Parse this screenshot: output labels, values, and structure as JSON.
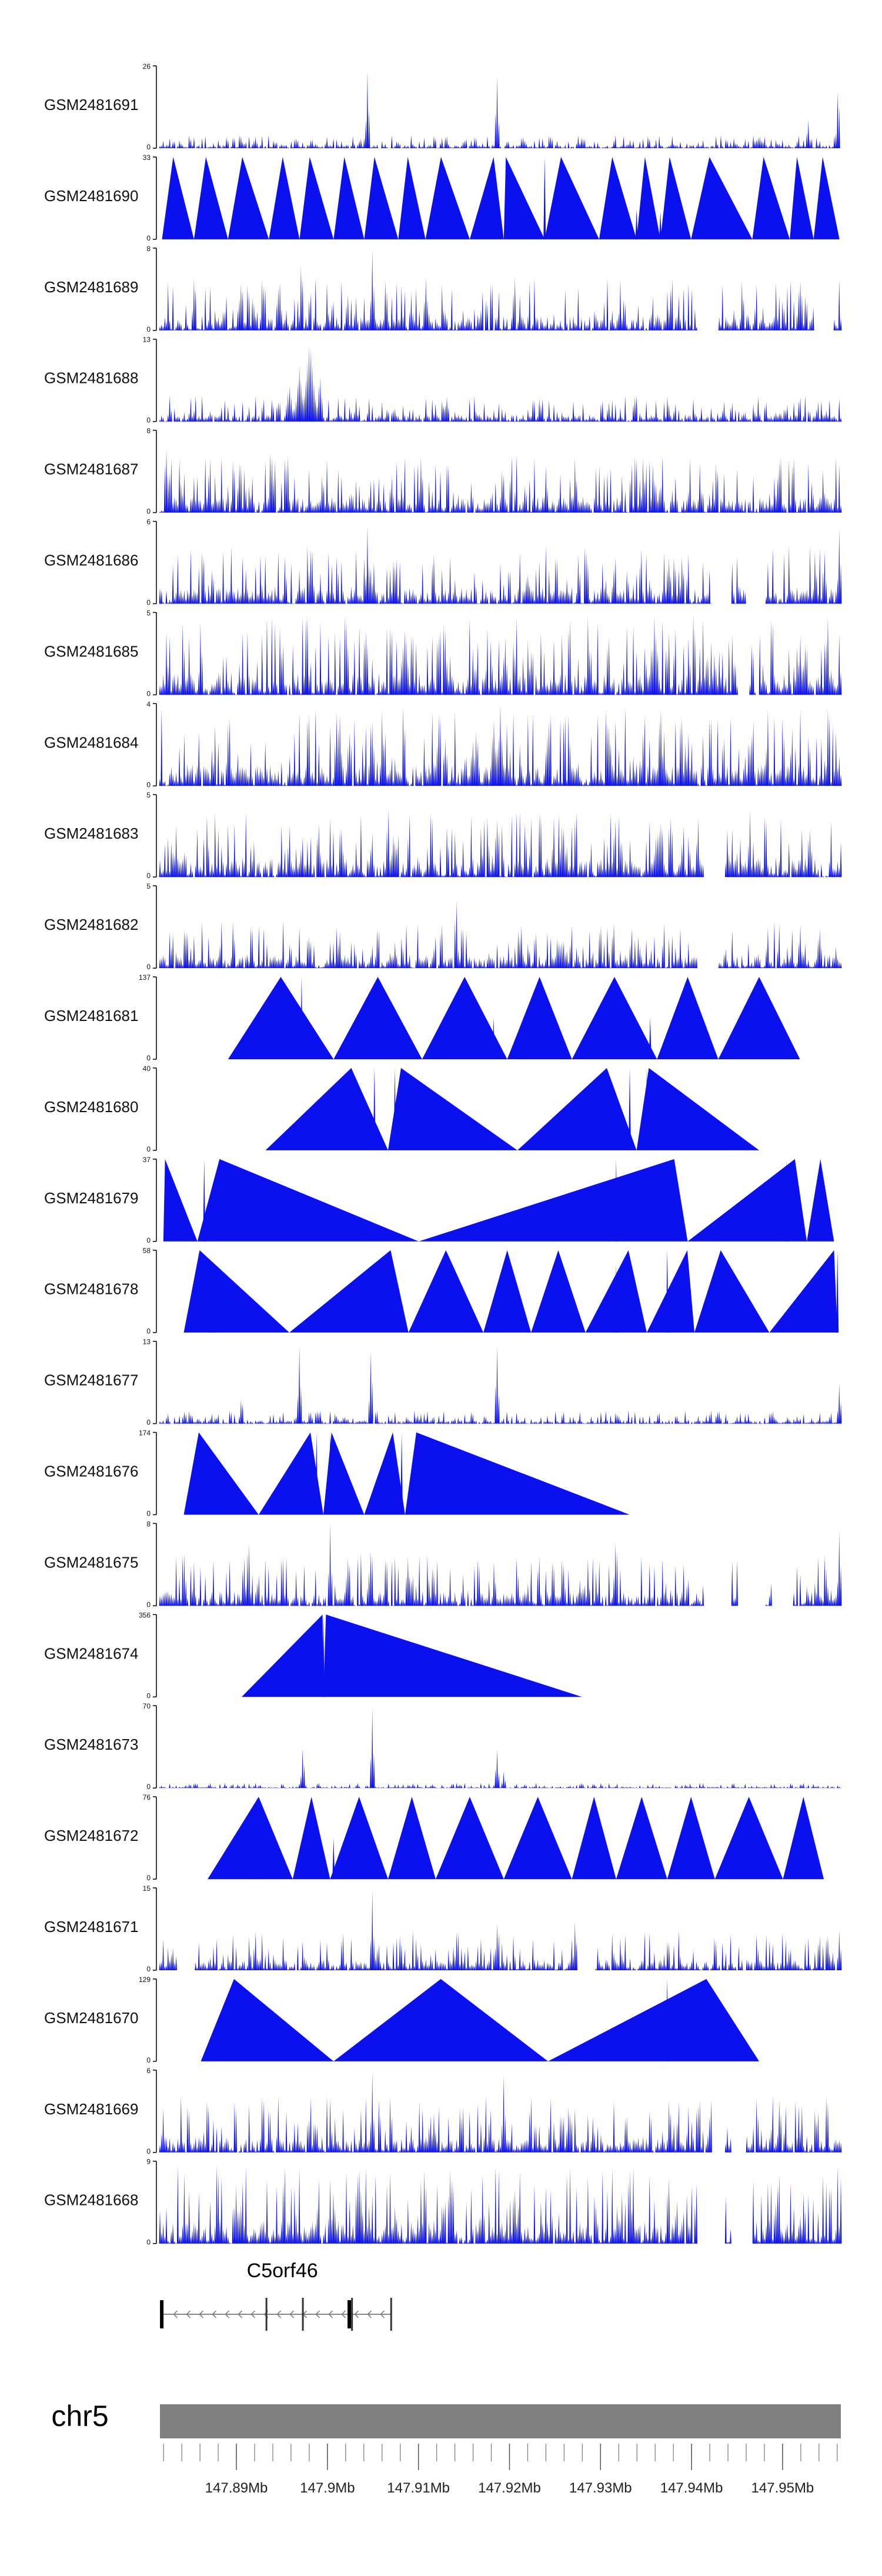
{
  "chart_data": {
    "type": "area",
    "title": "",
    "xlabel": "",
    "ylabel": "",
    "chromosome": "chr5",
    "x_range_mb": [
      147.8816,
      147.9564
    ],
    "x_ticks_mb": [
      147.89,
      147.9,
      147.91,
      147.92,
      147.93,
      147.94,
      147.95
    ],
    "x_tick_labels": [
      "147.89Mb",
      "147.9Mb",
      "147.91Mb",
      "147.92Mb",
      "147.93Mb",
      "147.94Mb",
      "147.95Mb"
    ],
    "fill_color": "#0b11ee",
    "tracks": [
      {
        "sample": "GSM2481691",
        "ymax": 26,
        "ymax_label": "26",
        "ymin_label": "0",
        "style": "dense",
        "baseline": 0.05,
        "bumps": [
          [
            0.305,
            26,
            0.004
          ],
          [
            0.495,
            24,
            0.004
          ],
          [
            0.952,
            10,
            0.004
          ],
          [
            0.996,
            22,
            0.004
          ],
          [
            0.14,
            4,
            0.005
          ],
          [
            0.62,
            4,
            0.006
          ]
        ]
      },
      {
        "sample": "GSM2481690",
        "ymax": 33,
        "ymax_label": "33",
        "ymin_label": "0",
        "style": "triangles",
        "tri": [
          [
            0.003,
            0.05,
            0.35
          ],
          [
            0.05,
            0.1,
            0.35
          ],
          [
            0.1,
            0.16,
            0.35
          ],
          [
            0.16,
            0.205,
            0.45
          ],
          [
            0.205,
            0.255,
            0.3
          ],
          [
            0.255,
            0.3,
            0.35
          ],
          [
            0.3,
            0.35,
            0.3
          ],
          [
            0.35,
            0.39,
            0.35
          ],
          [
            0.39,
            0.455,
            0.35
          ],
          [
            0.455,
            0.505,
            0.7
          ],
          [
            0.505,
            0.565,
            0.05
          ],
          [
            0.565,
            0.645,
            0.3
          ],
          [
            0.645,
            0.7,
            0.35
          ],
          [
            0.7,
            0.735,
            0.35
          ],
          [
            0.735,
            0.78,
            0.3
          ],
          [
            0.78,
            0.87,
            0.3
          ],
          [
            0.87,
            0.925,
            0.3
          ],
          [
            0.925,
            0.96,
            0.3
          ],
          [
            0.96,
            0.998,
            0.35
          ]
        ],
        "bumps": [
          [
            0.565,
            33,
            0.003
          ],
          [
            0.7,
            12,
            0.002
          ],
          [
            0.735,
            11,
            0.002
          ]
        ]
      },
      {
        "sample": "GSM2481689",
        "ymax": 8,
        "ymax_label": "8",
        "ymin_label": "0",
        "style": "dense",
        "baseline": 0.2,
        "bumps": [
          [
            0.208,
            8,
            0.004
          ],
          [
            0.312,
            8,
            0.004
          ],
          [
            0.12,
            6,
            0.004
          ],
          [
            0.05,
            5,
            0.004
          ]
        ],
        "gaps": [
          [
            0.79,
            0.82
          ],
          [
            0.96,
            0.99
          ]
        ]
      },
      {
        "sample": "GSM2481688",
        "ymax": 13,
        "ymax_label": "13",
        "ymin_label": "0",
        "style": "dense",
        "baseline": 0.1,
        "bumps": [
          [
            0.22,
            13,
            0.012
          ],
          [
            0.205,
            9,
            0.008
          ],
          [
            0.19,
            6,
            0.008
          ],
          [
            0.235,
            8,
            0.006
          ]
        ]
      },
      {
        "sample": "GSM2481687",
        "ymax": 8,
        "ymax_label": "8",
        "ymin_label": "0",
        "style": "dense",
        "baseline": 0.22,
        "bumps": [
          [
            0.163,
            8,
            0.004
          ],
          [
            0.01,
            7,
            0.004
          ],
          [
            0.61,
            6,
            0.004
          ],
          [
            0.71,
            6,
            0.004
          ],
          [
            0.93,
            7,
            0.004
          ]
        ]
      },
      {
        "sample": "GSM2481686",
        "ymax": 6,
        "ymax_label": "6",
        "ymin_label": "0",
        "style": "dense",
        "baseline": 0.22,
        "bumps": [
          [
            0.305,
            6,
            0.004
          ],
          [
            0.998,
            6,
            0.004
          ],
          [
            0.31,
            3,
            0.004
          ],
          [
            0.65,
            3,
            0.004
          ]
        ],
        "gaps": [
          [
            0.81,
            0.84
          ],
          [
            0.86,
            0.89
          ]
        ]
      },
      {
        "sample": "GSM2481685",
        "ymax": 5,
        "ymax_label": "5",
        "ymin_label": "0",
        "style": "dense",
        "baseline": 0.3,
        "bumps": [
          [
            0.06,
            5,
            0.004
          ],
          [
            0.18,
            4,
            0.004
          ],
          [
            0.41,
            4,
            0.004
          ],
          [
            0.87,
            4,
            0.004
          ]
        ],
        "gaps": [
          [
            0.85,
            0.88
          ]
        ]
      },
      {
        "sample": "GSM2481684",
        "ymax": 4,
        "ymax_label": "4",
        "ymin_label": "0",
        "style": "dense",
        "baseline": 0.3,
        "bumps": [
          [
            0.5,
            4,
            0.006
          ],
          [
            0.49,
            3.5,
            0.006
          ],
          [
            0.465,
            3,
            0.006
          ],
          [
            0.915,
            4,
            0.004
          ],
          [
            0.1,
            3,
            0.004
          ],
          [
            0.74,
            3,
            0.004
          ]
        ]
      },
      {
        "sample": "GSM2481683",
        "ymax": 5,
        "ymax_label": "5",
        "ymin_label": "0",
        "style": "dense",
        "baseline": 0.25,
        "bumps": [
          [
            0.335,
            5,
            0.004
          ],
          [
            0.79,
            4,
            0.004
          ],
          [
            0.19,
            3.5,
            0.004
          ],
          [
            0.59,
            3.5,
            0.004
          ]
        ],
        "gaps": [
          [
            0.8,
            0.83
          ]
        ]
      },
      {
        "sample": "GSM2481682",
        "ymax": 5,
        "ymax_label": "5",
        "ymin_label": "0",
        "style": "dense",
        "baseline": 0.18,
        "bumps": [
          [
            0.435,
            5,
            0.004
          ],
          [
            0.94,
            3,
            0.004
          ],
          [
            0.22,
            2.5,
            0.004
          ]
        ],
        "gaps": [
          [
            0.79,
            0.82
          ]
        ]
      },
      {
        "sample": "GSM2481681",
        "ymax": 137,
        "ymax_label": "137",
        "ymin_label": "0",
        "style": "triangles",
        "tri": [
          [
            0.1,
            0.255,
            0.5
          ],
          [
            0.255,
            0.385,
            0.5
          ],
          [
            0.385,
            0.51,
            0.5
          ],
          [
            0.51,
            0.605,
            0.5
          ],
          [
            0.605,
            0.73,
            0.5
          ],
          [
            0.73,
            0.82,
            0.5
          ],
          [
            0.82,
            0.94,
            0.5
          ]
        ],
        "bumps": [
          [
            0.208,
            137,
            0.002
          ],
          [
            0.292,
            65,
            0.002
          ],
          [
            0.49,
            70,
            0.002
          ],
          [
            0.72,
            70,
            0.002
          ]
        ]
      },
      {
        "sample": "GSM2481680",
        "ymax": 40,
        "ymax_label": "40",
        "ymin_label": "0",
        "style": "triangles",
        "tri": [
          [
            0.155,
            0.335,
            0.7
          ],
          [
            0.335,
            0.525,
            0.1
          ],
          [
            0.525,
            0.7,
            0.75
          ],
          [
            0.7,
            0.88,
            0.1
          ]
        ],
        "bumps": [
          [
            0.315,
            40,
            0.002
          ],
          [
            0.345,
            40,
            0.002
          ],
          [
            0.69,
            40,
            0.002
          ],
          [
            0.715,
            40,
            0.002
          ]
        ]
      },
      {
        "sample": "GSM2481679",
        "ymax": 37,
        "ymax_label": "37",
        "ymin_label": "0",
        "style": "triangles",
        "tri": [
          [
            0.005,
            0.055,
            0.05
          ],
          [
            0.055,
            0.38,
            0.1
          ],
          [
            0.38,
            0.775,
            0.95
          ],
          [
            0.775,
            0.95,
            0.9
          ],
          [
            0.95,
            0.99,
            0.5
          ]
        ],
        "bumps": [
          [
            0.065,
            37,
            0.002
          ],
          [
            0.67,
            37,
            0.002
          ],
          [
            0.92,
            37,
            0.002
          ]
        ]
      },
      {
        "sample": "GSM2481678",
        "ymax": 58,
        "ymax_label": "58",
        "ymin_label": "0",
        "style": "triangles",
        "tri": [
          [
            0.035,
            0.19,
            0.15
          ],
          [
            0.19,
            0.365,
            0.85
          ],
          [
            0.365,
            0.475,
            0.5
          ],
          [
            0.475,
            0.545,
            0.5
          ],
          [
            0.545,
            0.625,
            0.5
          ],
          [
            0.625,
            0.715,
            0.7
          ],
          [
            0.715,
            0.785,
            0.85
          ],
          [
            0.785,
            0.895,
            0.35
          ],
          [
            0.895,
            0.995,
            0.95
          ]
        ],
        "bumps": [
          [
            0.075,
            38,
            0.002
          ],
          [
            0.67,
            48,
            0.002
          ],
          [
            0.745,
            58,
            0.002
          ],
          [
            0.995,
            58,
            0.002
          ]
        ]
      },
      {
        "sample": "GSM2481677",
        "ymax": 13,
        "ymax_label": "13",
        "ymin_label": "0",
        "style": "dense",
        "baseline": 0.05,
        "bumps": [
          [
            0.205,
            13,
            0.004
          ],
          [
            0.31,
            13,
            0.004
          ],
          [
            0.495,
            13,
            0.004
          ],
          [
            0.12,
            5,
            0.004
          ],
          [
            0.998,
            7,
            0.004
          ]
        ]
      },
      {
        "sample": "GSM2481676",
        "ymax": 174,
        "ymax_label": "174",
        "ymin_label": "0",
        "style": "triangles",
        "tri": [
          [
            0.035,
            0.145,
            0.2
          ],
          [
            0.145,
            0.24,
            0.8
          ],
          [
            0.24,
            0.3,
            0.2
          ],
          [
            0.3,
            0.36,
            0.7
          ],
          [
            0.36,
            0.69,
            0.05
          ]
        ],
        "bumps": [
          [
            0.23,
            174,
            0.002
          ],
          [
            0.25,
            174,
            0.002
          ],
          [
            0.355,
            174,
            0.002
          ]
        ]
      },
      {
        "sample": "GSM2481675",
        "ymax": 8,
        "ymax_label": "8",
        "ymin_label": "0",
        "style": "dense",
        "baseline": 0.2,
        "bumps": [
          [
            0.13,
            8,
            0.004
          ],
          [
            0.25,
            8,
            0.004
          ],
          [
            0.67,
            8,
            0.004
          ],
          [
            0.998,
            8,
            0.004
          ],
          [
            0.31,
            6,
            0.004
          ]
        ],
        "gaps": [
          [
            0.8,
            0.84
          ],
          [
            0.85,
            0.89
          ],
          [
            0.9,
            0.93
          ]
        ]
      },
      {
        "sample": "GSM2481674",
        "ymax": 356,
        "ymax_label": "356",
        "ymin_label": "0",
        "style": "triangles",
        "tri": [
          [
            0.12,
            0.24,
            0.99
          ],
          [
            0.24,
            0.62,
            0.01
          ]
        ],
        "bumps": [
          [
            0.24,
            356,
            0.002
          ]
        ]
      },
      {
        "sample": "GSM2481673",
        "ymax": 70,
        "ymax_label": "70",
        "ymin_label": "0",
        "style": "dense",
        "baseline": 0.02,
        "bumps": [
          [
            0.312,
            70,
            0.004
          ],
          [
            0.21,
            38,
            0.004
          ],
          [
            0.495,
            35,
            0.004
          ],
          [
            0.505,
            15,
            0.004
          ]
        ]
      },
      {
        "sample": "GSM2481672",
        "ymax": 76,
        "ymax_label": "76",
        "ymin_label": "0",
        "style": "triangles",
        "tri": [
          [
            0.07,
            0.195,
            0.6
          ],
          [
            0.195,
            0.25,
            0.5
          ],
          [
            0.25,
            0.335,
            0.5
          ],
          [
            0.335,
            0.405,
            0.5
          ],
          [
            0.405,
            0.505,
            0.5
          ],
          [
            0.505,
            0.605,
            0.5
          ],
          [
            0.605,
            0.67,
            0.5
          ],
          [
            0.67,
            0.745,
            0.5
          ],
          [
            0.745,
            0.815,
            0.5
          ],
          [
            0.815,
            0.915,
            0.5
          ],
          [
            0.915,
            0.975,
            0.5
          ]
        ],
        "bumps": [
          [
            0.142,
            76,
            0.002
          ],
          [
            0.255,
            38,
            0.002
          ]
        ]
      },
      {
        "sample": "GSM2481671",
        "ymax": 15,
        "ymax_label": "15",
        "ymin_label": "0",
        "style": "dense",
        "baseline": 0.15,
        "bumps": [
          [
            0.312,
            15,
            0.004
          ],
          [
            0.61,
            10,
            0.004
          ],
          [
            0.14,
            8,
            0.004
          ],
          [
            0.495,
            9,
            0.004
          ],
          [
            0.998,
            8,
            0.004
          ]
        ],
        "gaps": [
          [
            0.025,
            0.05
          ],
          [
            0.61,
            0.64
          ]
        ]
      },
      {
        "sample": "GSM2481670",
        "ymax": 129,
        "ymax_label": "129",
        "ymin_label": "0",
        "style": "triangles",
        "tri": [
          [
            0.06,
            0.255,
            0.25
          ],
          [
            0.255,
            0.57,
            0.5
          ],
          [
            0.57,
            0.88,
            0.75
          ]
        ],
        "bumps": [
          [
            0.745,
            129,
            0.002
          ]
        ]
      },
      {
        "sample": "GSM2481669",
        "ymax": 6,
        "ymax_label": "6",
        "ymin_label": "0",
        "style": "dense",
        "baseline": 0.22,
        "bumps": [
          [
            0.312,
            6,
            0.004
          ],
          [
            0.505,
            6,
            0.004
          ],
          [
            0.07,
            4,
            0.004
          ],
          [
            0.72,
            4,
            0.004
          ]
        ],
        "gaps": [
          [
            0.81,
            0.83
          ],
          [
            0.84,
            0.86
          ]
        ]
      },
      {
        "sample": "GSM2481668",
        "ymax": 9,
        "ymax_label": "9",
        "ymin_label": "0",
        "style": "dense",
        "baseline": 0.3,
        "bumps": [
          [
            0.69,
            9,
            0.004
          ],
          [
            0.25,
            7,
            0.004
          ],
          [
            0.43,
            7,
            0.004
          ]
        ],
        "gaps": [
          [
            0.79,
            0.83
          ],
          [
            0.84,
            0.87
          ]
        ]
      }
    ],
    "gene_track": {
      "gene_name": "C5orf46",
      "strand": "-",
      "start_mb": 147.8817,
      "end_mb": 147.9071,
      "exon_marks_mb": [
        147.8818,
        147.8933,
        147.8973,
        147.9024,
        147.9027,
        147.907
      ]
    }
  }
}
